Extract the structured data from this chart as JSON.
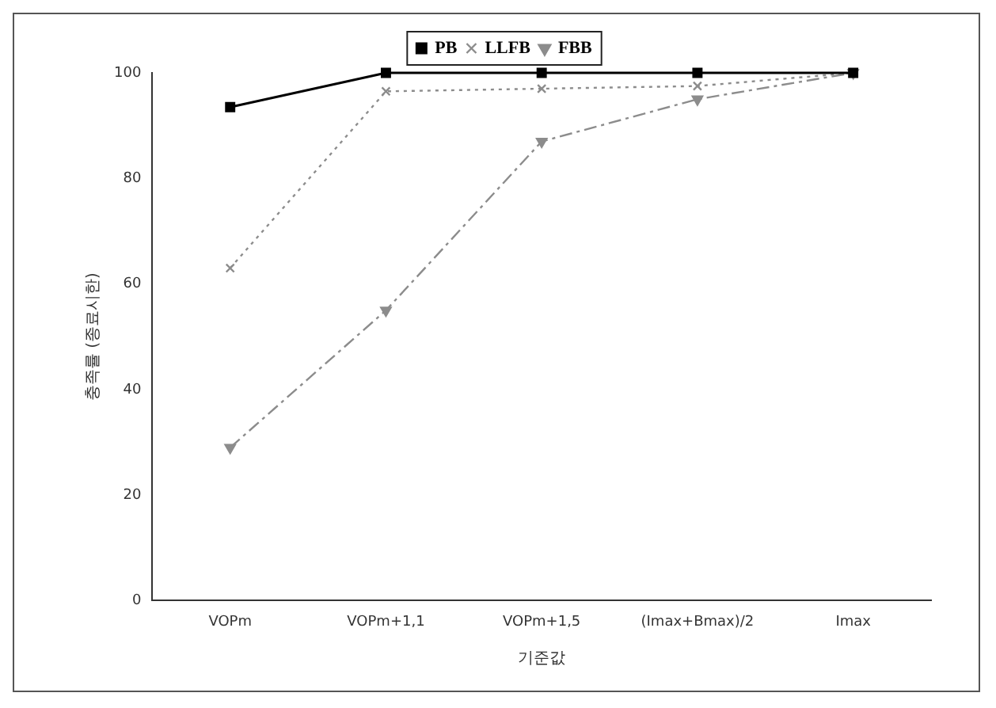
{
  "chart_data": {
    "type": "line",
    "xlabel": "기준값",
    "ylabel": "충족률 (종료시한)",
    "categories": [
      "VOPm",
      "VOPm+1,1",
      "VOPm+1,5",
      "(Imax+Bmax)/2",
      "Imax"
    ],
    "series": [
      {
        "name": "PB",
        "color": "#000000",
        "values": [
          93.5,
          100,
          100,
          100,
          100
        ],
        "marker": "square",
        "line_style": "solid"
      },
      {
        "name": "LLFB",
        "color": "#8c8c8c",
        "values": [
          63,
          96.5,
          97,
          97.5,
          100
        ],
        "marker": "cross",
        "line_style": "dotted"
      },
      {
        "name": "FBB",
        "color": "#8c8c8c",
        "values": [
          29,
          55,
          87,
          95,
          100
        ],
        "marker": "triangle",
        "line_style": "dashed"
      }
    ],
    "ylim": [
      0,
      100
    ],
    "yticks": [
      0,
      20,
      40,
      60,
      80,
      100
    ],
    "grid": false,
    "legend": "top"
  }
}
